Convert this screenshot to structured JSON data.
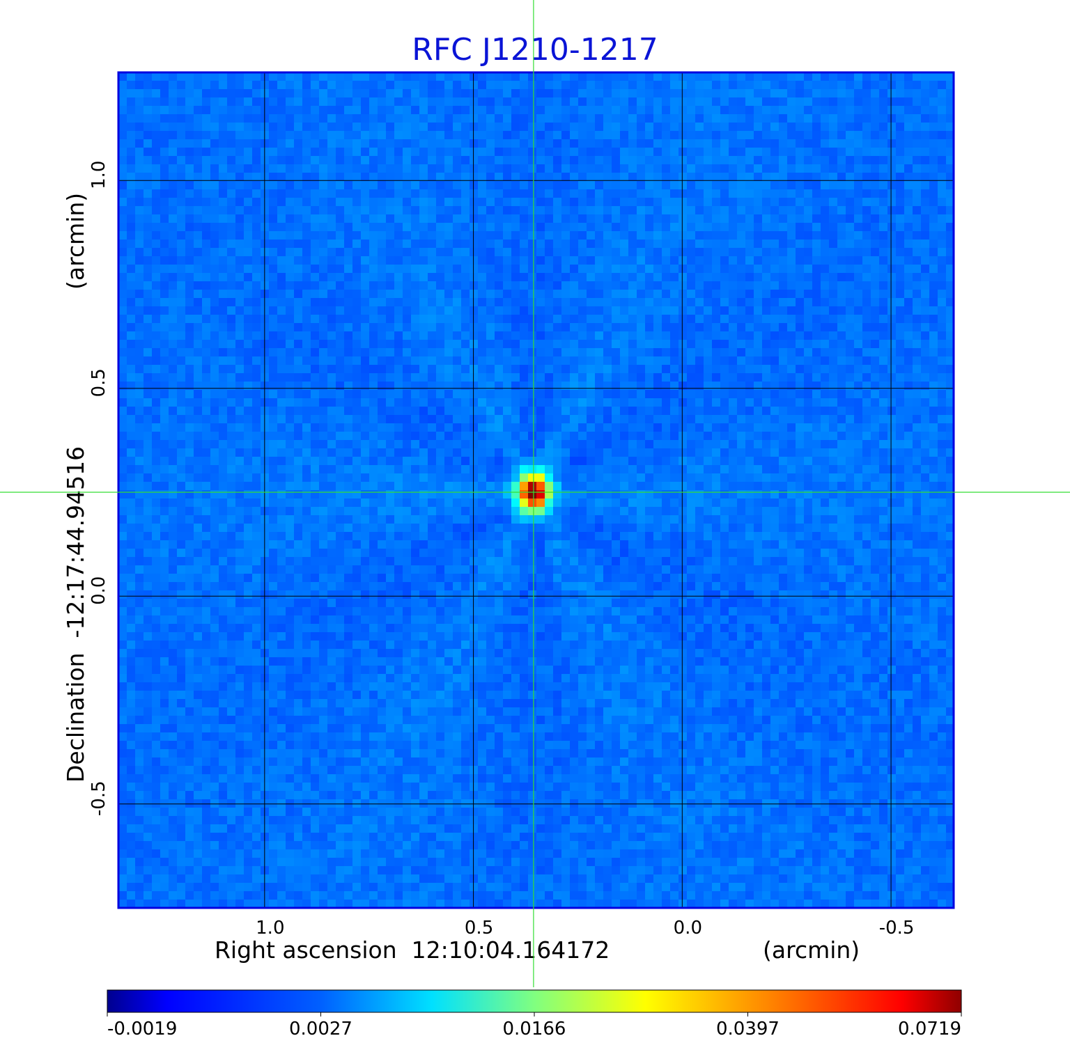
{
  "chart_data": {
    "type": "heatmap",
    "title": "RFC J1210-1217",
    "xlabel": "Right ascension  12:10:04.164172",
    "xunit": "(arcmin)",
    "ylabel": "Declination  -12:17:44.94516",
    "yunit": "(arcmin)",
    "xlim": [
      1.35,
      -0.65
    ],
    "ylim": [
      -0.75,
      1.26
    ],
    "xticks": [
      1.0,
      0.5,
      0.0,
      -0.5
    ],
    "xtick_labels": [
      "1.0",
      "0.5",
      "0.0",
      "-0.5"
    ],
    "yticks": [
      1.0,
      0.5,
      0.0,
      -0.5
    ],
    "ytick_labels": [
      "1.0",
      "0.5",
      "0.0",
      "-0.5"
    ],
    "grid": true,
    "crosshair": {
      "x": 0.356,
      "y": 0.25
    },
    "source_peak": {
      "x": 0.356,
      "y": 0.25,
      "value": 0.0719
    },
    "colorbar": {
      "colormap": "jet",
      "tick_values": [
        -0.0019,
        0.0027,
        0.0166,
        0.0397,
        0.0719
      ],
      "tick_labels": [
        "-0.0019",
        "0.0027",
        "0.0166",
        "0.0397",
        "0.0719"
      ]
    },
    "colors": {
      "title": "#0a14d6",
      "frame": "#0000e0",
      "crosshair": "#33dd33",
      "grid": "#000000",
      "background_field": "#1a64f0"
    }
  }
}
